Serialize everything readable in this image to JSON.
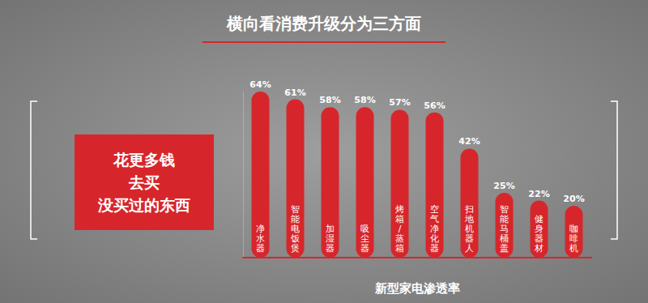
{
  "chart_data": {
    "type": "bar",
    "title": "横向看消费升级分为三方面",
    "annotations": [
      "花更多钱",
      "去买",
      "没买过的东西"
    ],
    "xlabel": "新型家电渗透率",
    "categories": [
      "净水器",
      "智能电饭煲",
      "加湿器",
      "吸尘器",
      "烤箱/蒸箱",
      "空气净化器",
      "扫地机器人",
      "智能马桶盖",
      "健身器材",
      "咖啡机"
    ],
    "values": [
      64,
      61,
      58,
      58,
      57,
      56,
      42,
      25,
      22,
      20
    ],
    "value_labels": [
      "64%",
      "61%",
      "58%",
      "58%",
      "57%",
      "56%",
      "42%",
      "25%",
      "22%",
      "20%"
    ],
    "color": "#d7262b",
    "ylim": [
      0,
      64
    ],
    "grid": false,
    "data_labels": true,
    "tick_labels": "x"
  }
}
